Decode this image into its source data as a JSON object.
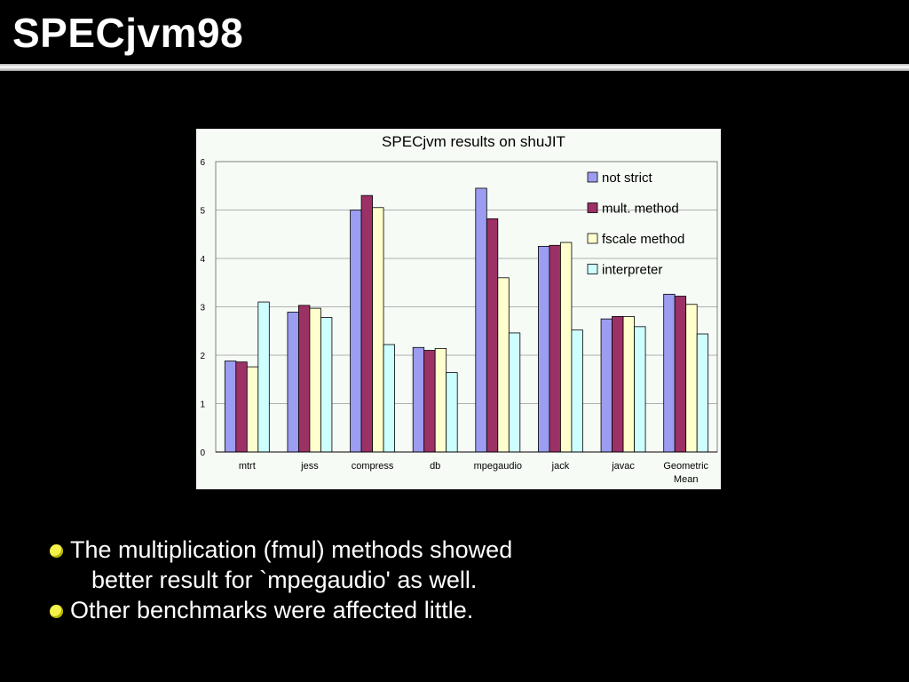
{
  "slide": {
    "title": "SPECjvm98",
    "bullets": [
      {
        "lines": [
          "The multiplication (fmul) methods showed",
          "better result for `mpegaudio' as well."
        ]
      },
      {
        "lines": [
          "Other benchmarks were affected little."
        ]
      }
    ],
    "bullet_color": "#f4f24a"
  },
  "chart_data": {
    "type": "bar",
    "title": "SPECjvm results on shuJIT",
    "xlabel": "",
    "ylabel": "",
    "ylim": [
      0,
      6
    ],
    "yticks": [
      0,
      1,
      2,
      3,
      4,
      5,
      6
    ],
    "grid": true,
    "legend_position": "top-right",
    "categories": [
      "mtrt",
      "jess",
      "compress",
      "db",
      "mpegaudio",
      "jack",
      "javac",
      "Geometric Mean"
    ],
    "series": [
      {
        "name": "not strict",
        "color": "#9c9cf0",
        "values": [
          1.88,
          2.89,
          5.0,
          2.16,
          5.45,
          4.25,
          2.75,
          3.26
        ]
      },
      {
        "name": "mult. method",
        "color": "#9c3166",
        "values": [
          1.86,
          3.03,
          5.3,
          2.1,
          4.82,
          4.27,
          2.8,
          3.22
        ]
      },
      {
        "name": "fscale method",
        "color": "#ffffce",
        "values": [
          1.76,
          2.97,
          5.05,
          2.14,
          3.6,
          4.33,
          2.8,
          3.05
        ]
      },
      {
        "name": "interpreter",
        "color": "#ceffff",
        "values": [
          3.1,
          2.78,
          2.22,
          1.64,
          2.46,
          2.52,
          2.59,
          2.44
        ]
      }
    ]
  }
}
